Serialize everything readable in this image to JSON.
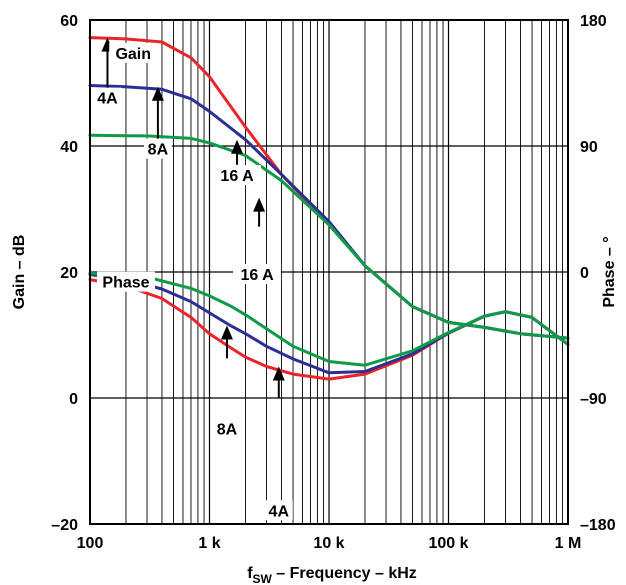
{
  "chart_data": {
    "type": "line",
    "xlabel_main": "f",
    "xlabel_sub": "SW",
    "xlabel_rest": " – Frequency – kHz",
    "ylabel_left": "Gain – dB",
    "ylabel_right": "Phase – °",
    "x_scale": "log",
    "xlim": [
      100,
      1000000
    ],
    "ylim_left": [
      -20,
      60
    ],
    "ylim_right": [
      -180,
      180
    ],
    "grid": true,
    "x_ticks": [
      {
        "value": 100,
        "label": "100"
      },
      {
        "value": 1000,
        "label": "1 k"
      },
      {
        "value": 10000,
        "label": "10 k"
      },
      {
        "value": 100000,
        "label": "100 k"
      },
      {
        "value": 1000000,
        "label": "1 M"
      }
    ],
    "y_ticks_left": [
      {
        "value": 60,
        "label": "60"
      },
      {
        "value": 40,
        "label": "40"
      },
      {
        "value": 20,
        "label": "20"
      },
      {
        "value": 0,
        "label": "0"
      },
      {
        "value": -20,
        "label": "–20"
      }
    ],
    "y_ticks_right": [
      {
        "value": 180,
        "label": "180"
      },
      {
        "value": 90,
        "label": "90"
      },
      {
        "value": 0,
        "label": "0"
      },
      {
        "value": -90,
        "label": "–90"
      },
      {
        "value": -180,
        "label": "–180"
      }
    ],
    "colors": {
      "4A": "#e8262a",
      "8A": "#2b2f94",
      "16A": "#0f9a4a"
    },
    "series": [
      {
        "key": "4A",
        "group": "gain",
        "axis": "left",
        "x": [
          100,
          200,
          400,
          700,
          1000,
          2000,
          4000,
          10000,
          20000,
          50000,
          100000,
          200000,
          400000,
          1000000
        ],
        "y": [
          57.2,
          57.0,
          56.5,
          54,
          51,
          43,
          35.5,
          27.5,
          21,
          14.5,
          12,
          11.2,
          10.2,
          9.5
        ]
      },
      {
        "key": "8A",
        "group": "gain",
        "axis": "left",
        "x": [
          100,
          200,
          400,
          700,
          1000,
          2000,
          4000,
          10000,
          20000,
          50000,
          100000,
          200000,
          400000,
          1000000
        ],
        "y": [
          49.6,
          49.4,
          49.0,
          47.5,
          45.5,
          41,
          35.5,
          28,
          21,
          14.5,
          12,
          11.2,
          10.2,
          9.5
        ]
      },
      {
        "key": "16A",
        "group": "gain",
        "axis": "left",
        "x": [
          100,
          300,
          700,
          1000,
          2000,
          4000,
          10000,
          20000,
          50000,
          100000,
          200000,
          400000,
          1000000
        ],
        "y": [
          41.7,
          41.6,
          41.2,
          40.5,
          38.5,
          34.5,
          27.5,
          21,
          14.5,
          12,
          11.2,
          10.2,
          9.5
        ]
      },
      {
        "key": "4A",
        "group": "phase",
        "axis": "left",
        "x": [
          100,
          200,
          400,
          700,
          1000,
          1500,
          2000,
          3000,
          5000,
          10000,
          20000,
          50000,
          100000,
          200000,
          300000,
          500000,
          1000000
        ],
        "y": [
          18.8,
          17.8,
          15.8,
          12.8,
          10.2,
          8.0,
          6.5,
          5.0,
          3.8,
          3.0,
          3.8,
          6.8,
          10.3,
          13.0,
          13.7,
          12.8,
          8.5
        ]
      },
      {
        "key": "8A",
        "group": "phase",
        "axis": "left",
        "x": [
          100,
          200,
          400,
          700,
          1000,
          1500,
          2000,
          3000,
          5000,
          10000,
          20000,
          50000,
          100000,
          200000,
          300000,
          500000,
          1000000
        ],
        "y": [
          19.6,
          18.8,
          17.3,
          15.3,
          13.5,
          11.5,
          10.2,
          8.2,
          6.2,
          4.0,
          4.2,
          7.0,
          10.3,
          13.0,
          13.7,
          12.8,
          8.5
        ]
      },
      {
        "key": "16A",
        "group": "phase",
        "axis": "left",
        "x": [
          100,
          300,
          700,
          1000,
          1500,
          2000,
          3000,
          5000,
          10000,
          20000,
          50000,
          100000,
          200000,
          300000,
          500000,
          1000000
        ],
        "y": [
          19.8,
          19.2,
          17.4,
          16.2,
          14.6,
          13.2,
          11.0,
          8.2,
          5.8,
          5.2,
          7.5,
          10.4,
          13.0,
          13.7,
          12.8,
          8.5
        ]
      }
    ],
    "annotations": [
      {
        "text": "Gain",
        "x": 230,
        "y": 54.3
      },
      {
        "text": "Phase",
        "x": 200,
        "y": 18.0
      },
      {
        "text": "4A",
        "x": 140,
        "y": 47.2
      },
      {
        "text": "8A",
        "x": 370,
        "y": 39.1
      },
      {
        "text": "16 A",
        "x": 1700,
        "y": 34.9
      },
      {
        "text": "16 A",
        "x": 2500,
        "y": 19.2
      },
      {
        "text": "8A",
        "x": 1400,
        "y": -5.3
      },
      {
        "text": "4A",
        "x": 3800,
        "y": -18.3
      }
    ],
    "arrows": [
      {
        "x": 140,
        "y_from": 47.8,
        "y_to": 57.2
      },
      {
        "x": 370,
        "y_from": 41.0,
        "y_to": 49.4
      },
      {
        "x": 1700,
        "y_from": 37.0,
        "y_to": 41.0
      },
      {
        "x": 2600,
        "y_from": 27.2,
        "y_to": 31.8
      },
      {
        "x": 1400,
        "y_from": 6.3,
        "y_to": 11.5
      },
      {
        "x": 3800,
        "y_from": 0.0,
        "y_to": 5.0
      }
    ]
  }
}
